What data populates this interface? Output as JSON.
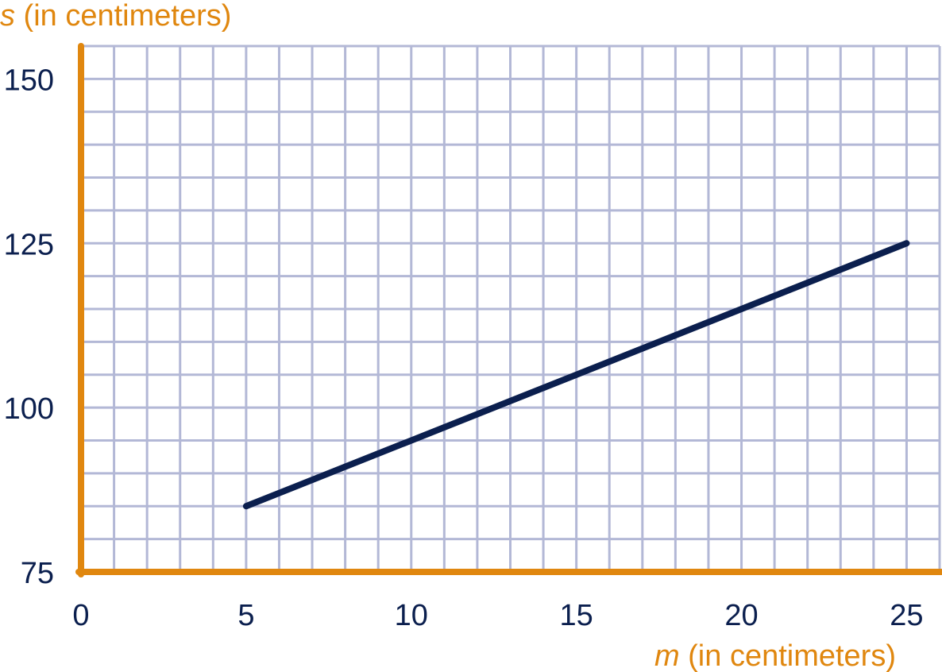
{
  "chart_data": {
    "type": "line",
    "xlabel_var": "m",
    "xlabel_rest": " (in centimeters)",
    "ylabel_var": "s",
    "ylabel_rest": " (in centimeters)",
    "xlim": [
      0,
      26
    ],
    "ylim": [
      75,
      155
    ],
    "x_ticks": [
      0,
      5,
      10,
      15,
      20,
      25
    ],
    "y_ticks": [
      75,
      100,
      125,
      150
    ],
    "x_minor_step": 1,
    "y_minor_step": 5,
    "grid": true,
    "series": [
      {
        "x": [
          5,
          25
        ],
        "y": [
          85,
          125
        ]
      }
    ],
    "colors": {
      "axis": "#e0870f",
      "grid": "#b3b8d6",
      "line": "#0b1f4e",
      "tick_text": "#0b1f4e"
    }
  }
}
